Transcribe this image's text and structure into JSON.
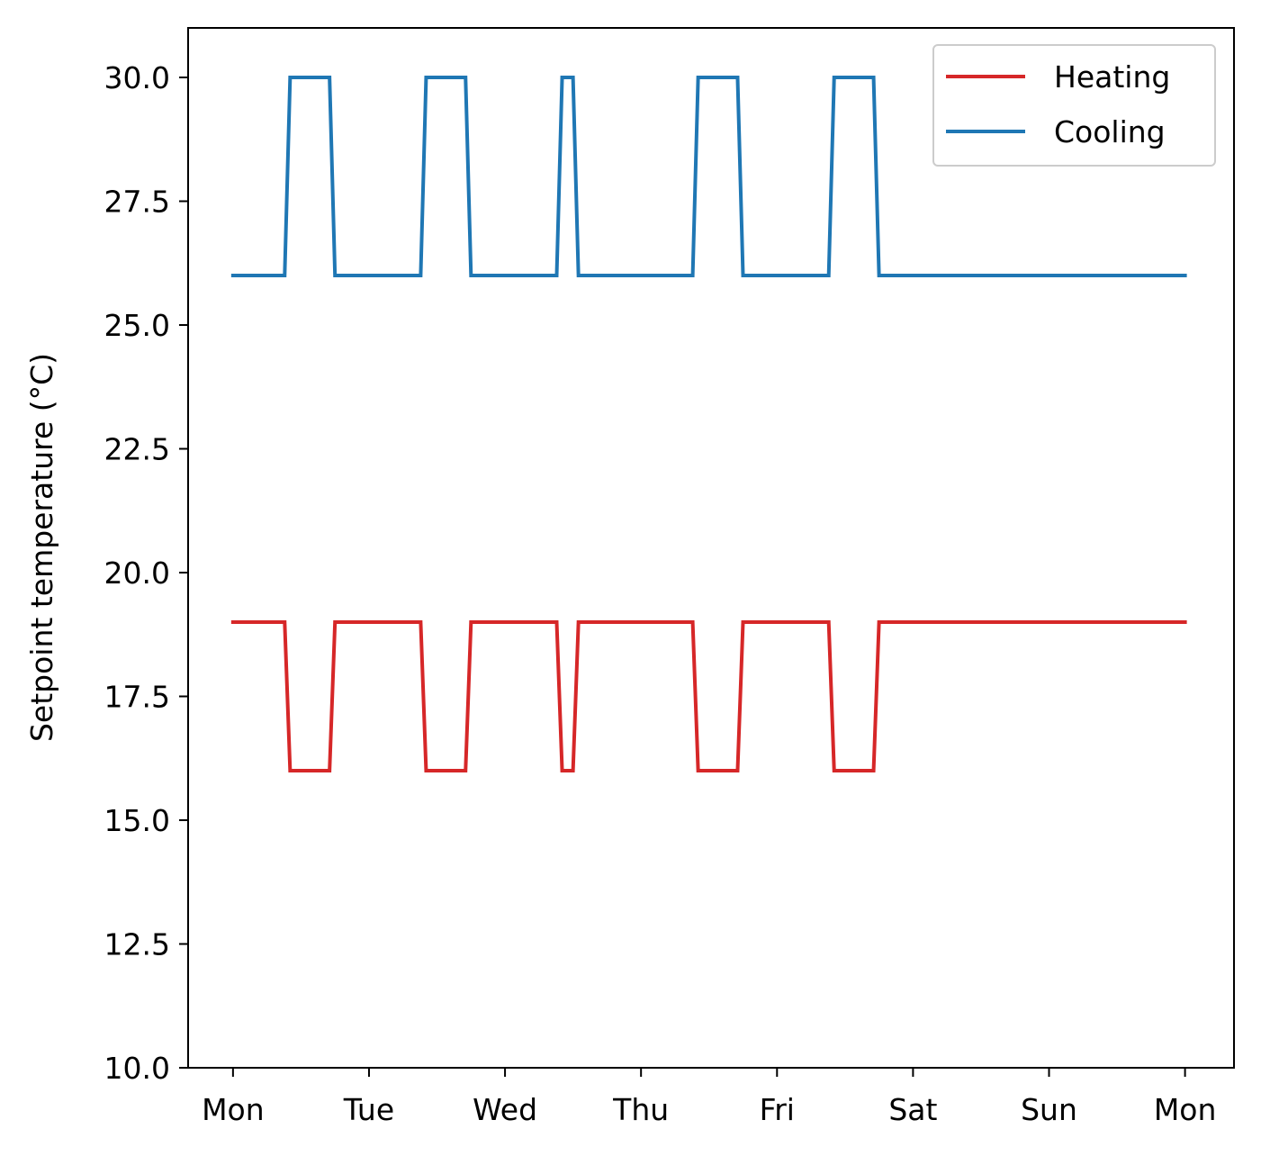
{
  "chart_data": {
    "type": "line",
    "title": "",
    "xlabel": "",
    "ylabel": "Setpoint temperature (°C)",
    "xlim": [
      -0.33,
      7.36
    ],
    "ylim": [
      10.0,
      31.0
    ],
    "x_ticks": [
      {
        "value": 0,
        "label": "Mon"
      },
      {
        "value": 1,
        "label": "Tue"
      },
      {
        "value": 2,
        "label": "Wed"
      },
      {
        "value": 3,
        "label": "Thu"
      },
      {
        "value": 4,
        "label": "Fri"
      },
      {
        "value": 5,
        "label": "Sat"
      },
      {
        "value": 6,
        "label": "Sun"
      },
      {
        "value": 7,
        "label": "Mon"
      }
    ],
    "y_ticks": [
      {
        "value": 10.0,
        "label": "10.0"
      },
      {
        "value": 12.5,
        "label": "12.5"
      },
      {
        "value": 15.0,
        "label": "15.0"
      },
      {
        "value": 17.5,
        "label": "17.5"
      },
      {
        "value": 20.0,
        "label": "20.0"
      },
      {
        "value": 22.5,
        "label": "22.5"
      },
      {
        "value": 25.0,
        "label": "25.0"
      },
      {
        "value": 27.5,
        "label": "27.5"
      },
      {
        "value": 30.0,
        "label": "30.0"
      }
    ],
    "grid": false,
    "legend_position": "top-right",
    "series": [
      {
        "name": "Heating",
        "color": "#d62728",
        "x": [
          0,
          0.38,
          0.42,
          0.71,
          0.75,
          1.38,
          1.42,
          1.71,
          1.75,
          2.38,
          2.42,
          2.5,
          2.54,
          3.38,
          3.42,
          3.71,
          3.75,
          4.38,
          4.42,
          4.71,
          4.75,
          7.0
        ],
        "y": [
          19,
          19,
          16,
          16,
          19,
          19,
          16,
          16,
          19,
          19,
          16,
          16,
          19,
          19,
          16,
          16,
          19,
          19,
          16,
          16,
          19,
          19
        ]
      },
      {
        "name": "Cooling",
        "color": "#1f77b4",
        "x": [
          0,
          0.38,
          0.42,
          0.71,
          0.75,
          1.38,
          1.42,
          1.71,
          1.75,
          2.38,
          2.42,
          2.5,
          2.54,
          3.38,
          3.42,
          3.71,
          3.75,
          4.38,
          4.42,
          4.71,
          4.75,
          7.0
        ],
        "y": [
          26,
          26,
          30,
          30,
          26,
          26,
          30,
          30,
          26,
          26,
          30,
          30,
          26,
          26,
          30,
          30,
          26,
          26,
          30,
          30,
          26,
          26
        ]
      }
    ]
  }
}
